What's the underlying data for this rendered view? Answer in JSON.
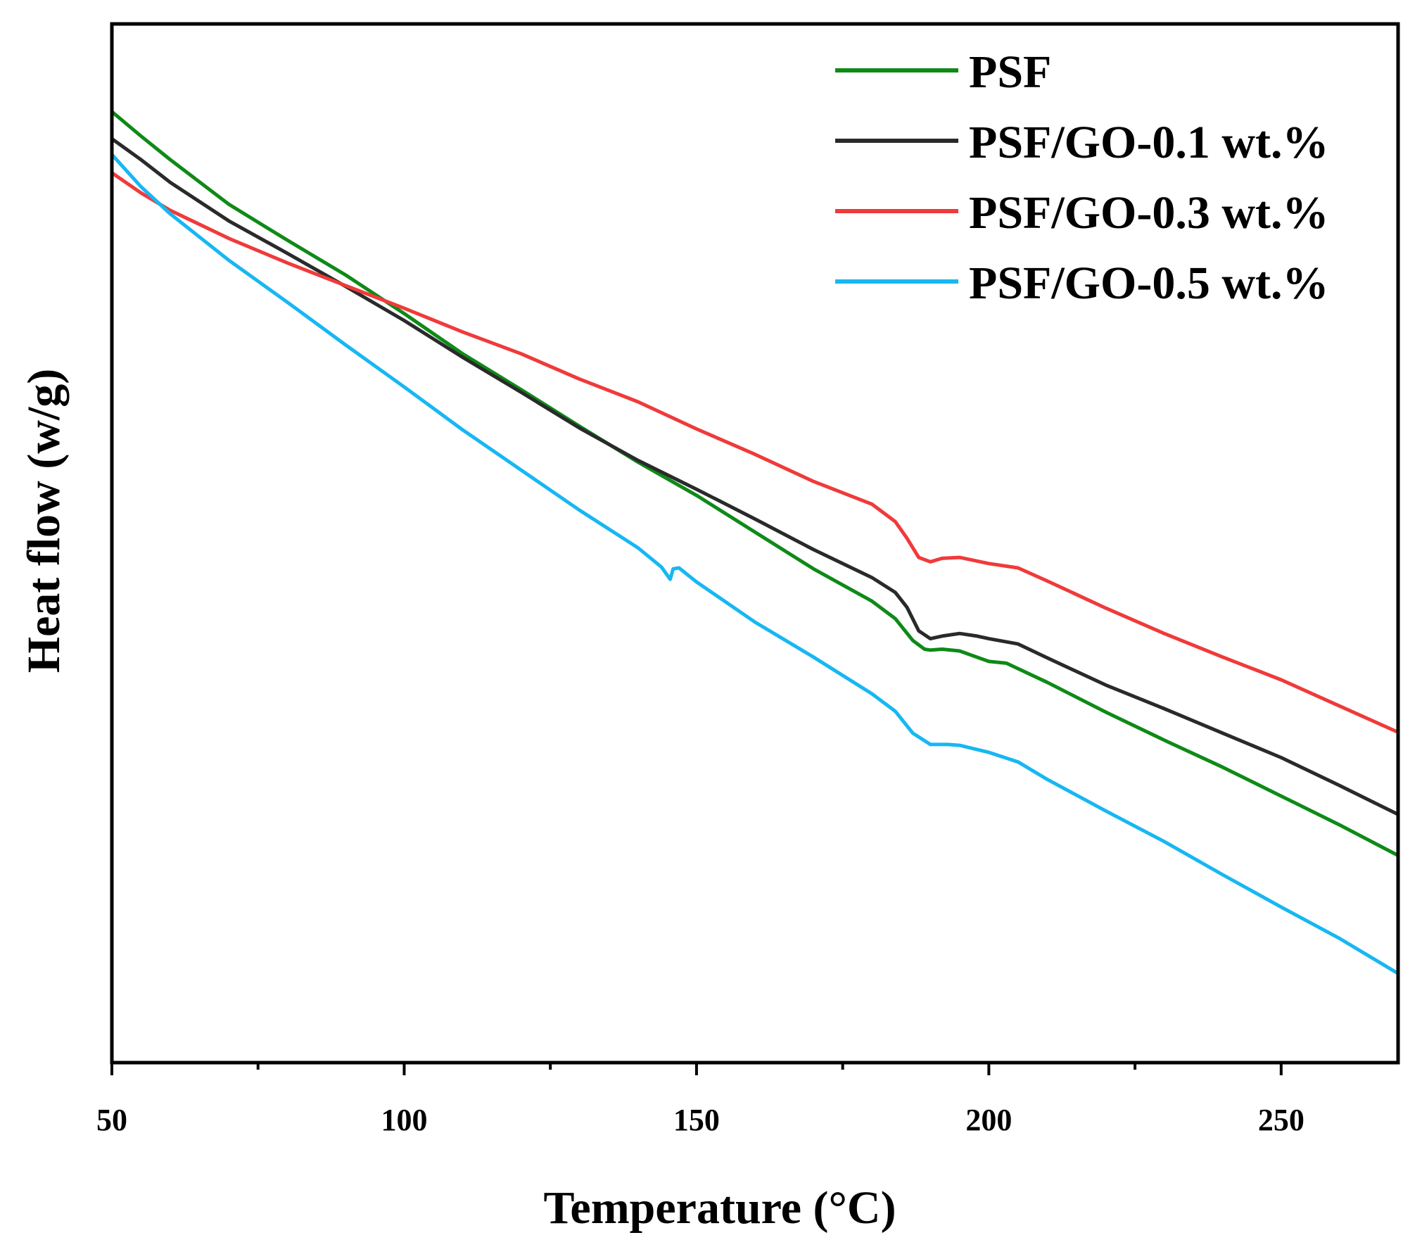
{
  "chart_data": {
    "type": "line",
    "title": "",
    "xlabel": "Temperature (°C)",
    "ylabel": "Heat flow (w/g)",
    "xlim": [
      50,
      270
    ],
    "ylim": [
      0,
      100
    ],
    "y_tick_labels_shown": false,
    "x_ticks": [
      50,
      100,
      150,
      200,
      250
    ],
    "x_tick_labels": [
      "50",
      "100",
      "150",
      "200",
      "250"
    ],
    "grid": false,
    "legend_position": "top-right",
    "series": [
      {
        "name": "PSF",
        "color": "#0e8a17",
        "points": [
          [
            50,
            99.3
          ],
          [
            55,
            96.5
          ],
          [
            60,
            93.8
          ],
          [
            70,
            88.7
          ],
          [
            80,
            84.6
          ],
          [
            90,
            80.6
          ],
          [
            100,
            76.2
          ],
          [
            110,
            71.6
          ],
          [
            120,
            67.5
          ],
          [
            130,
            63.3
          ],
          [
            140,
            59.2
          ],
          [
            150,
            55.4
          ],
          [
            160,
            51.2
          ],
          [
            170,
            47.0
          ],
          [
            180,
            43.3
          ],
          [
            184,
            41.3
          ],
          [
            187,
            38.8
          ],
          [
            189,
            37.8
          ],
          [
            190,
            37.7
          ],
          [
            192,
            37.8
          ],
          [
            195,
            37.6
          ],
          [
            200,
            36.4
          ],
          [
            203,
            36.2
          ],
          [
            210,
            34.0
          ],
          [
            220,
            30.6
          ],
          [
            230,
            27.4
          ],
          [
            240,
            24.3
          ],
          [
            250,
            21.0
          ],
          [
            260,
            17.7
          ],
          [
            270,
            14.2
          ]
        ]
      },
      {
        "name": "PSF/GO-0.1 wt.%",
        "color": "#2a2a2a",
        "points": [
          [
            50,
            96.2
          ],
          [
            55,
            93.8
          ],
          [
            60,
            91.2
          ],
          [
            70,
            86.8
          ],
          [
            80,
            83.1
          ],
          [
            90,
            79.3
          ],
          [
            100,
            75.4
          ],
          [
            110,
            71.2
          ],
          [
            120,
            67.2
          ],
          [
            130,
            63.1
          ],
          [
            140,
            59.4
          ],
          [
            150,
            56.1
          ],
          [
            160,
            52.7
          ],
          [
            170,
            49.2
          ],
          [
            180,
            46.0
          ],
          [
            184,
            44.3
          ],
          [
            186,
            42.6
          ],
          [
            188,
            39.9
          ],
          [
            190,
            39.0
          ],
          [
            192,
            39.3
          ],
          [
            195,
            39.6
          ],
          [
            198,
            39.3
          ],
          [
            200,
            39.0
          ],
          [
            205,
            38.4
          ],
          [
            210,
            36.8
          ],
          [
            220,
            33.7
          ],
          [
            230,
            31.0
          ],
          [
            240,
            28.2
          ],
          [
            250,
            25.4
          ],
          [
            260,
            22.2
          ],
          [
            270,
            18.9
          ]
        ]
      },
      {
        "name": "PSF/GO-0.3 wt.%",
        "color": "#f03a3a",
        "points": [
          [
            50,
            92.3
          ],
          [
            55,
            90.0
          ],
          [
            60,
            88.0
          ],
          [
            70,
            84.8
          ],
          [
            80,
            82.0
          ],
          [
            90,
            79.4
          ],
          [
            100,
            76.8
          ],
          [
            110,
            74.1
          ],
          [
            120,
            71.6
          ],
          [
            130,
            68.7
          ],
          [
            140,
            66.1
          ],
          [
            150,
            63.0
          ],
          [
            160,
            60.1
          ],
          [
            170,
            57.0
          ],
          [
            180,
            54.4
          ],
          [
            184,
            52.4
          ],
          [
            186,
            50.5
          ],
          [
            188,
            48.3
          ],
          [
            190,
            47.8
          ],
          [
            192,
            48.2
          ],
          [
            195,
            48.3
          ],
          [
            200,
            47.6
          ],
          [
            205,
            47.1
          ],
          [
            210,
            45.6
          ],
          [
            220,
            42.5
          ],
          [
            230,
            39.6
          ],
          [
            240,
            36.9
          ],
          [
            250,
            34.3
          ],
          [
            260,
            31.3
          ],
          [
            270,
            28.3
          ]
        ]
      },
      {
        "name": "PSF/GO-0.5 wt.%",
        "color": "#17b7f2",
        "points": [
          [
            50,
            94.4
          ],
          [
            55,
            90.7
          ],
          [
            60,
            87.6
          ],
          [
            70,
            82.3
          ],
          [
            80,
            77.5
          ],
          [
            90,
            72.6
          ],
          [
            100,
            67.8
          ],
          [
            110,
            62.9
          ],
          [
            120,
            58.3
          ],
          [
            130,
            53.7
          ],
          [
            140,
            49.4
          ],
          [
            144,
            47.2
          ],
          [
            145.5,
            45.8
          ],
          [
            146,
            47.0
          ],
          [
            147,
            47.1
          ],
          [
            150,
            45.5
          ],
          [
            160,
            40.9
          ],
          [
            170,
            36.9
          ],
          [
            180,
            32.7
          ],
          [
            184,
            30.7
          ],
          [
            187,
            28.2
          ],
          [
            190,
            26.9
          ],
          [
            193,
            26.9
          ],
          [
            195,
            26.8
          ],
          [
            200,
            26.0
          ],
          [
            205,
            24.9
          ],
          [
            210,
            22.9
          ],
          [
            220,
            19.3
          ],
          [
            230,
            15.8
          ],
          [
            240,
            12.0
          ],
          [
            250,
            8.3
          ],
          [
            260,
            4.7
          ],
          [
            270,
            0.7
          ]
        ]
      }
    ]
  }
}
